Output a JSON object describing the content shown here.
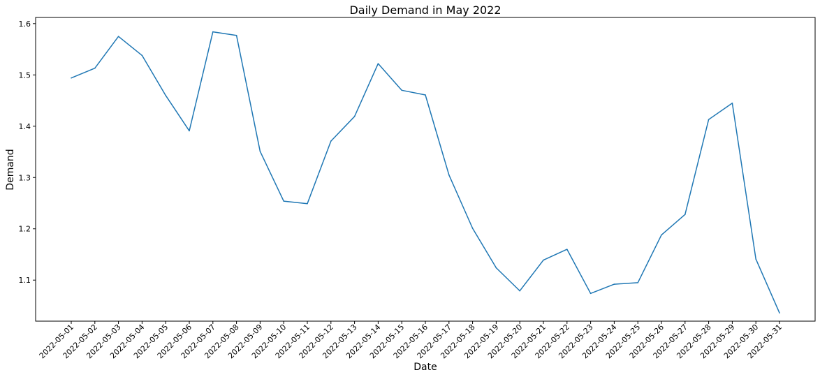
{
  "chart_data": {
    "type": "line",
    "title": "Daily Demand in May 2022",
    "xlabel": "Date",
    "ylabel": "Demand",
    "ylim": [
      1.02,
      1.612
    ],
    "yticks": [
      "1.1",
      "1.2",
      "1.3",
      "1.4",
      "1.5",
      "1.6"
    ],
    "grid": false,
    "line_color": "#1f77b4",
    "categories": [
      "2022-05-01",
      "2022-05-02",
      "2022-05-03",
      "2022-05-04",
      "2022-05-05",
      "2022-05-06",
      "2022-05-07",
      "2022-05-08",
      "2022-05-09",
      "2022-05-10",
      "2022-05-11",
      "2022-05-12",
      "2022-05-13",
      "2022-05-14",
      "2022-05-15",
      "2022-05-16",
      "2022-05-17",
      "2022-05-18",
      "2022-05-19",
      "2022-05-20",
      "2022-05-21",
      "2022-05-22",
      "2022-05-23",
      "2022-05-24",
      "2022-05-25",
      "2022-05-26",
      "2022-05-27",
      "2022-05-28",
      "2022-05-29",
      "2022-05-30",
      "2022-05-31"
    ],
    "values": [
      1.494,
      1.513,
      1.575,
      1.538,
      1.46,
      1.391,
      1.584,
      1.577,
      1.351,
      1.254,
      1.249,
      1.371,
      1.419,
      1.522,
      1.47,
      1.461,
      1.305,
      1.201,
      1.124,
      1.079,
      1.139,
      1.16,
      1.074,
      1.092,
      1.095,
      1.188,
      1.228,
      1.413,
      1.445,
      1.141,
      1.036
    ]
  }
}
